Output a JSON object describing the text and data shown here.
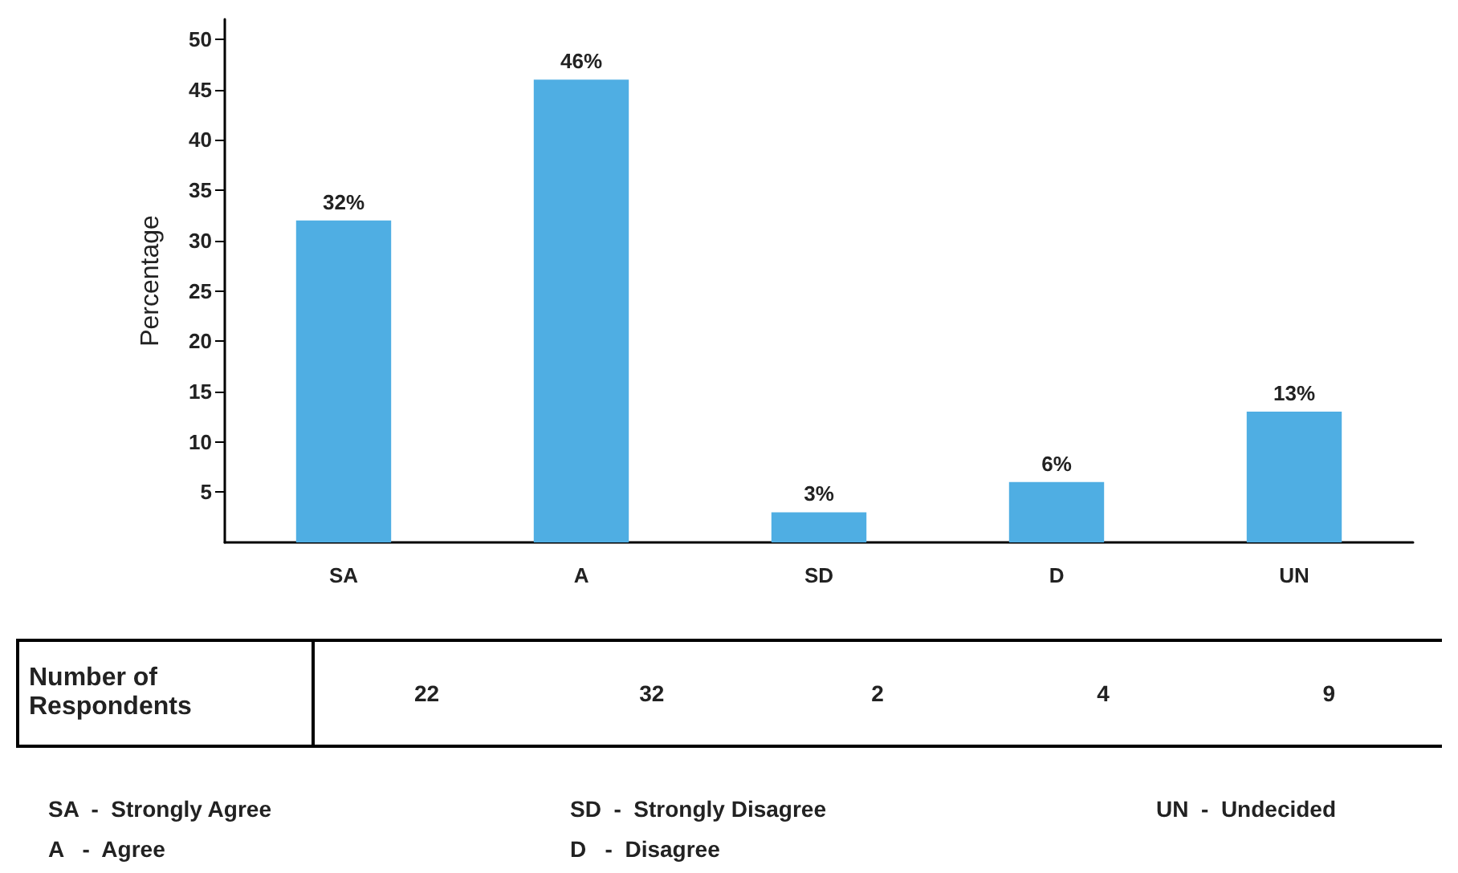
{
  "chart_data": {
    "type": "bar",
    "ylabel": "Percentage",
    "categories": [
      "SA",
      "A",
      "SD",
      "D",
      "UN"
    ],
    "values": [
      32,
      46,
      3,
      6,
      13
    ],
    "value_labels": [
      "32%",
      "46%",
      "3%",
      "6%",
      "13%"
    ],
    "color": "#4faee3",
    "ylim": [
      0,
      52
    ],
    "yticks": [
      5,
      10,
      15,
      20,
      25,
      30,
      35,
      40,
      45,
      50
    ],
    "grid": false,
    "annotations": [
      "Number of Respondents",
      "22",
      "32",
      "2",
      "4",
      "9",
      "SA  -  Strongly Agree",
      "A   -  Agree",
      "SD  -  Strongly Disagree",
      "D   -  Disagree",
      "UN  -  Undecided"
    ]
  }
}
